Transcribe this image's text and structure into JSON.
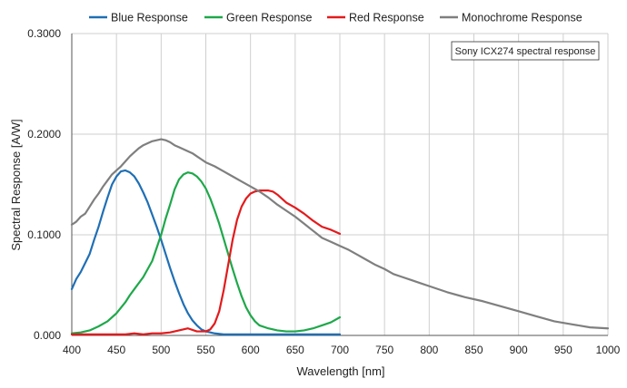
{
  "chart_data": {
    "type": "line",
    "title": "",
    "xlabel": "Wavelength [nm]",
    "ylabel": "Spectral Response [A/W]",
    "xlim": [
      400,
      1000
    ],
    "ylim": [
      0,
      0.3
    ],
    "x_ticks": [
      400,
      450,
      500,
      550,
      600,
      650,
      700,
      750,
      800,
      850,
      900,
      950,
      1000
    ],
    "y_ticks": [
      0,
      0.1,
      0.2,
      0.3
    ],
    "x_tick_labels": [
      "400",
      "450",
      "500",
      "550",
      "600",
      "650",
      "700",
      "750",
      "800",
      "850",
      "900",
      "950",
      "1000"
    ],
    "y_tick_labels": [
      "0.000",
      "0.1000",
      "0.2000",
      "0.3000"
    ],
    "grid": true,
    "legend_position": "top",
    "annotation": "Sony ICX274 spectral response",
    "series": [
      {
        "name": "Blue Response",
        "color": "#1f6fb5",
        "x": [
          400,
          405,
          410,
          415,
          420,
          425,
          430,
          435,
          440,
          445,
          450,
          455,
          460,
          465,
          470,
          475,
          480,
          485,
          490,
          495,
          500,
          505,
          510,
          515,
          520,
          525,
          530,
          535,
          540,
          545,
          550,
          555,
          560,
          570,
          580,
          590,
          600,
          620,
          640,
          660,
          680,
          700
        ],
        "y": [
          0.046,
          0.056,
          0.063,
          0.072,
          0.081,
          0.095,
          0.108,
          0.123,
          0.137,
          0.15,
          0.158,
          0.163,
          0.164,
          0.162,
          0.158,
          0.151,
          0.142,
          0.132,
          0.12,
          0.108,
          0.095,
          0.081,
          0.067,
          0.054,
          0.042,
          0.031,
          0.022,
          0.015,
          0.01,
          0.006,
          0.004,
          0.003,
          0.002,
          0.001,
          0.001,
          0.001,
          0.001,
          0.001,
          0.001,
          0.001,
          0.001,
          0.001
        ]
      },
      {
        "name": "Green Response",
        "color": "#1ea84a",
        "x": [
          400,
          410,
          420,
          430,
          440,
          450,
          460,
          465,
          470,
          480,
          490,
          500,
          505,
          510,
          515,
          520,
          525,
          530,
          535,
          540,
          545,
          550,
          555,
          560,
          565,
          570,
          575,
          580,
          585,
          590,
          595,
          600,
          605,
          610,
          620,
          630,
          640,
          650,
          660,
          670,
          680,
          690,
          700
        ],
        "y": [
          0.002,
          0.003,
          0.005,
          0.009,
          0.014,
          0.022,
          0.033,
          0.04,
          0.046,
          0.058,
          0.074,
          0.1,
          0.116,
          0.13,
          0.145,
          0.155,
          0.16,
          0.162,
          0.161,
          0.158,
          0.153,
          0.146,
          0.136,
          0.124,
          0.111,
          0.096,
          0.081,
          0.066,
          0.052,
          0.039,
          0.028,
          0.02,
          0.014,
          0.01,
          0.007,
          0.005,
          0.004,
          0.004,
          0.005,
          0.007,
          0.01,
          0.013,
          0.018
        ]
      },
      {
        "name": "Red Response",
        "color": "#e31a1c",
        "x": [
          400,
          420,
          440,
          460,
          470,
          480,
          490,
          500,
          510,
          520,
          530,
          540,
          550,
          555,
          560,
          565,
          570,
          575,
          580,
          585,
          590,
          595,
          600,
          605,
          610,
          615,
          620,
          625,
          630,
          640,
          650,
          660,
          670,
          680,
          690,
          700
        ],
        "y": [
          0.001,
          0.001,
          0.001,
          0.001,
          0.002,
          0.001,
          0.002,
          0.002,
          0.003,
          0.005,
          0.007,
          0.004,
          0.004,
          0.006,
          0.012,
          0.024,
          0.045,
          0.07,
          0.095,
          0.115,
          0.128,
          0.136,
          0.141,
          0.143,
          0.144,
          0.144,
          0.144,
          0.143,
          0.14,
          0.132,
          0.127,
          0.121,
          0.114,
          0.108,
          0.105,
          0.101
        ]
      },
      {
        "name": "Monochrome Response",
        "color": "#7f7f7f",
        "x": [
          400,
          405,
          410,
          415,
          420,
          425,
          430,
          435,
          440,
          445,
          450,
          455,
          460,
          465,
          470,
          475,
          480,
          485,
          490,
          495,
          500,
          505,
          510,
          515,
          520,
          525,
          530,
          535,
          540,
          545,
          550,
          560,
          570,
          580,
          590,
          600,
          610,
          620,
          630,
          640,
          650,
          660,
          670,
          680,
          690,
          700,
          710,
          720,
          730,
          740,
          750,
          760,
          770,
          780,
          790,
          800,
          820,
          840,
          860,
          880,
          900,
          920,
          940,
          960,
          980,
          1000
        ],
        "y": [
          0.11,
          0.113,
          0.118,
          0.121,
          0.128,
          0.135,
          0.141,
          0.148,
          0.154,
          0.16,
          0.164,
          0.168,
          0.173,
          0.178,
          0.182,
          0.186,
          0.189,
          0.191,
          0.193,
          0.194,
          0.195,
          0.194,
          0.192,
          0.189,
          0.187,
          0.185,
          0.183,
          0.181,
          0.178,
          0.175,
          0.172,
          0.168,
          0.163,
          0.158,
          0.153,
          0.148,
          0.143,
          0.137,
          0.13,
          0.124,
          0.118,
          0.111,
          0.104,
          0.097,
          0.093,
          0.089,
          0.085,
          0.08,
          0.075,
          0.07,
          0.066,
          0.061,
          0.058,
          0.055,
          0.052,
          0.049,
          0.043,
          0.038,
          0.034,
          0.029,
          0.024,
          0.019,
          0.014,
          0.011,
          0.008,
          0.007
        ]
      }
    ]
  }
}
